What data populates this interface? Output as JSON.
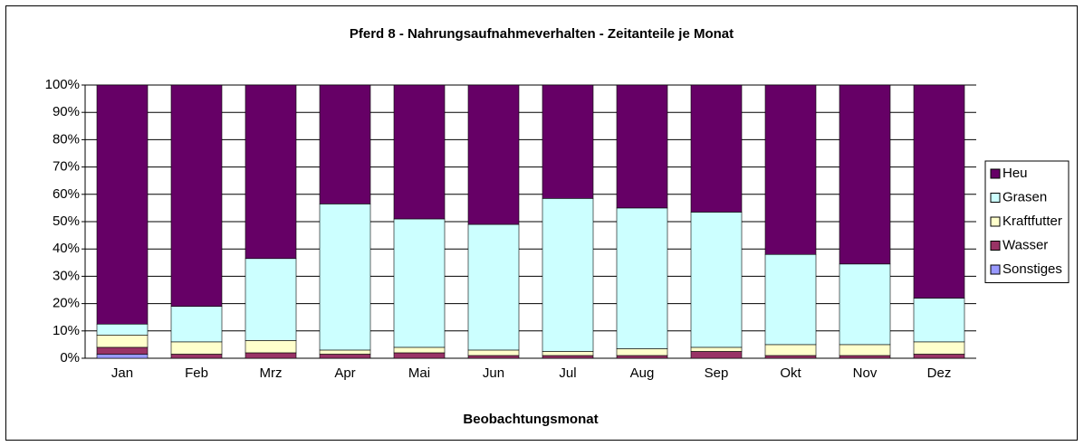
{
  "chart_data": {
    "type": "stacked_bar",
    "title": "Pferd 8 - Nahrungsaufnahmeverhalten - Zeitanteile je Monat",
    "x_label": "Beobachtungsmonat",
    "categories": [
      "Jan",
      "Feb",
      "Mrz",
      "Apr",
      "Mai",
      "Jun",
      "Jul",
      "Aug",
      "Sep",
      "Okt",
      "Nov",
      "Dez"
    ],
    "series": [
      {
        "name": "Sonstiges",
        "color": "#9999ff",
        "values": [
          1.5,
          0,
          0,
          0,
          0,
          0,
          0,
          0,
          0,
          0,
          0,
          0
        ]
      },
      {
        "name": "Wasser",
        "color": "#993366",
        "values": [
          2.5,
          1.5,
          2,
          1.5,
          2,
          1,
          1,
          1,
          2.5,
          1,
          1,
          1.5
        ]
      },
      {
        "name": "Kraftfutter",
        "color": "#ffffcc",
        "values": [
          4.5,
          4.5,
          4.5,
          1.5,
          2,
          2,
          1.5,
          2.5,
          1.5,
          4,
          4,
          4.5
        ]
      },
      {
        "name": "Grasen",
        "color": "#ccffff",
        "values": [
          4,
          13,
          30,
          53.5,
          47,
          46,
          56,
          51.5,
          49.5,
          33,
          29.5,
          16
        ]
      },
      {
        "name": "Heu",
        "color": "#660066",
        "values": [
          87.5,
          81,
          63.5,
          43.5,
          49,
          51,
          41.5,
          45,
          46.5,
          62,
          65.5,
          78
        ]
      }
    ],
    "ylim": [
      0,
      100
    ],
    "yticks": [
      {
        "value": 0,
        "label": "0%"
      },
      {
        "value": 10,
        "label": "10%"
      },
      {
        "value": 20,
        "label": "20%"
      },
      {
        "value": 30,
        "label": "30%"
      },
      {
        "value": 40,
        "label": "40%"
      },
      {
        "value": 50,
        "label": "50%"
      },
      {
        "value": 60,
        "label": "60%"
      },
      {
        "value": 70,
        "label": "70%"
      },
      {
        "value": 80,
        "label": "80%"
      },
      {
        "value": 90,
        "label": "90%"
      },
      {
        "value": 100,
        "label": "100%"
      }
    ],
    "grid": true,
    "legend": "right"
  }
}
